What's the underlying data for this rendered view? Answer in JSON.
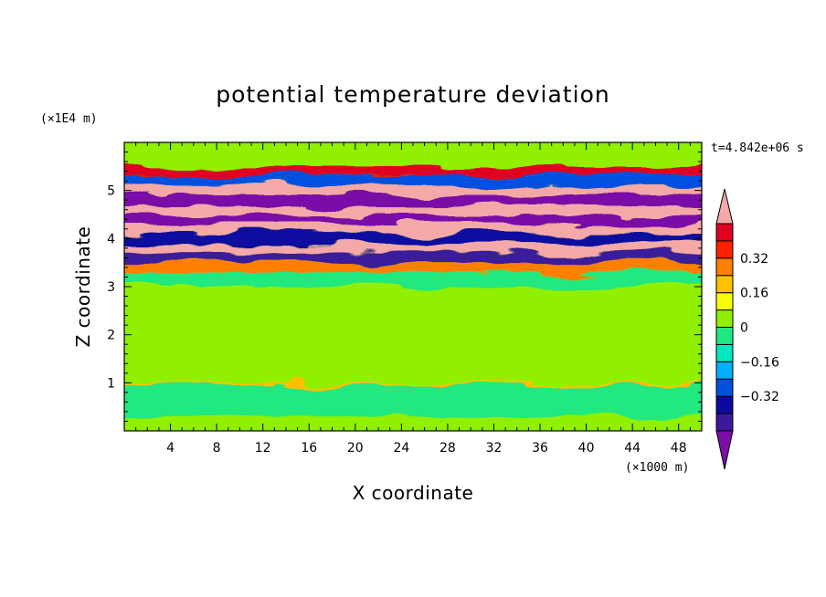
{
  "chart_data": {
    "type": "heatmap",
    "title": "potential temperature deviation",
    "xlabel": "X coordinate",
    "ylabel": "Z coordinate",
    "x_unit": "(×1000 m)",
    "y_unit": "(×1E4 m)",
    "time_label": "t=4.842e+06 s",
    "xlim": [
      0,
      50
    ],
    "ylim": [
      0,
      6
    ],
    "x_ticks": [
      "4",
      "8",
      "12",
      "16",
      "20",
      "24",
      "28",
      "32",
      "36",
      "40",
      "44",
      "48"
    ],
    "y_ticks": [
      "1",
      "2",
      "3",
      "4",
      "5"
    ],
    "colorbar": {
      "levels": [
        -0.48,
        -0.4,
        -0.32,
        -0.24,
        -0.16,
        -0.08,
        0,
        0.08,
        0.16,
        0.24,
        0.32,
        0.4,
        0.48
      ],
      "tick_labels": [
        "0.32",
        "0.16",
        "0",
        "−0.16",
        "−0.32"
      ],
      "colors": [
        "#7a0fa8",
        "#3a1a9a",
        "#0a0aa0",
        "#0050e0",
        "#00b0ff",
        "#00e8c0",
        "#20e880",
        "#90f000",
        "#f8ff00",
        "#ffc000",
        "#ff8000",
        "#ff2000",
        "#e00020",
        "#f4a8a8"
      ]
    },
    "bands": [
      {
        "z": [
          0.0,
          0.3
        ],
        "value": 0.02
      },
      {
        "z": [
          0.3,
          0.95
        ],
        "value": -0.02
      },
      {
        "z": [
          0.95,
          1.0
        ],
        "value": 0.2
      },
      {
        "z": [
          1.0,
          2.0
        ],
        "value": 0.05
      },
      {
        "z": [
          2.0,
          3.0
        ],
        "value": 0.06
      },
      {
        "z": [
          3.0,
          3.3
        ],
        "value": -0.05
      },
      {
        "z": [
          3.3,
          3.5
        ],
        "value": 0.3
      },
      {
        "z": [
          3.5,
          3.7
        ],
        "value": -0.45
      },
      {
        "z": [
          3.7,
          3.9
        ],
        "value": 0.5
      },
      {
        "z": [
          3.9,
          4.1
        ],
        "value": -0.4
      },
      {
        "z": [
          4.1,
          4.3
        ],
        "value": 0.5
      },
      {
        "z": [
          4.3,
          4.5
        ],
        "value": -0.5
      },
      {
        "z": [
          4.5,
          4.7
        ],
        "value": 0.5
      },
      {
        "z": [
          4.7,
          4.9
        ],
        "value": -0.5
      },
      {
        "z": [
          4.9,
          5.1
        ],
        "value": 0.5
      },
      {
        "z": [
          5.1,
          5.3
        ],
        "value": -0.3
      },
      {
        "z": [
          5.3,
          5.5
        ],
        "value": 0.4
      },
      {
        "z": [
          5.5,
          6.0
        ],
        "value": 0.05
      }
    ]
  }
}
